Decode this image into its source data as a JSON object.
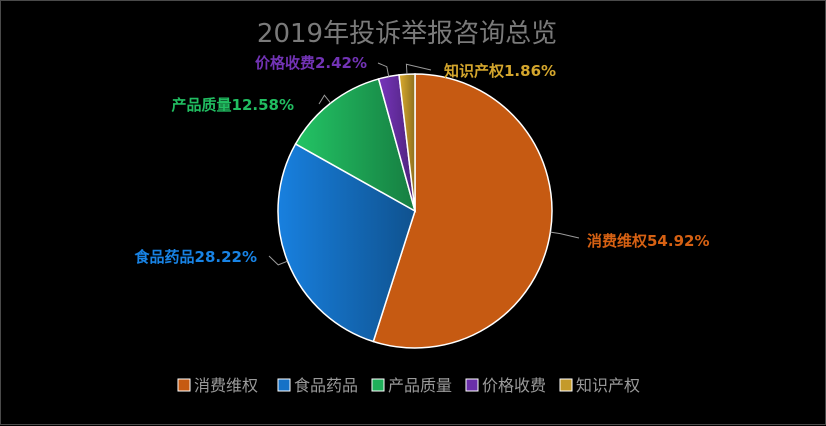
{
  "chart_data": {
    "type": "pie",
    "title": "2019年投诉举报咨询总览",
    "categories": [
      "消费维权",
      "食品药品",
      "产品质量",
      "价格收费",
      "知识产权"
    ],
    "values": [
      54.92,
      28.22,
      12.58,
      2.42,
      1.86
    ],
    "unit": "%",
    "labels": [
      "消费维权54.92%",
      "食品药品28.22%",
      "产品质量12.58%",
      "价格收费2.42%",
      "知识产权1.86%"
    ],
    "colors": [
      "#C65A12",
      "#1572C7",
      "#1FAF5A",
      "#6A2FA8",
      "#C49A2A"
    ],
    "legend_position": "bottom-center",
    "background": "#000000"
  }
}
